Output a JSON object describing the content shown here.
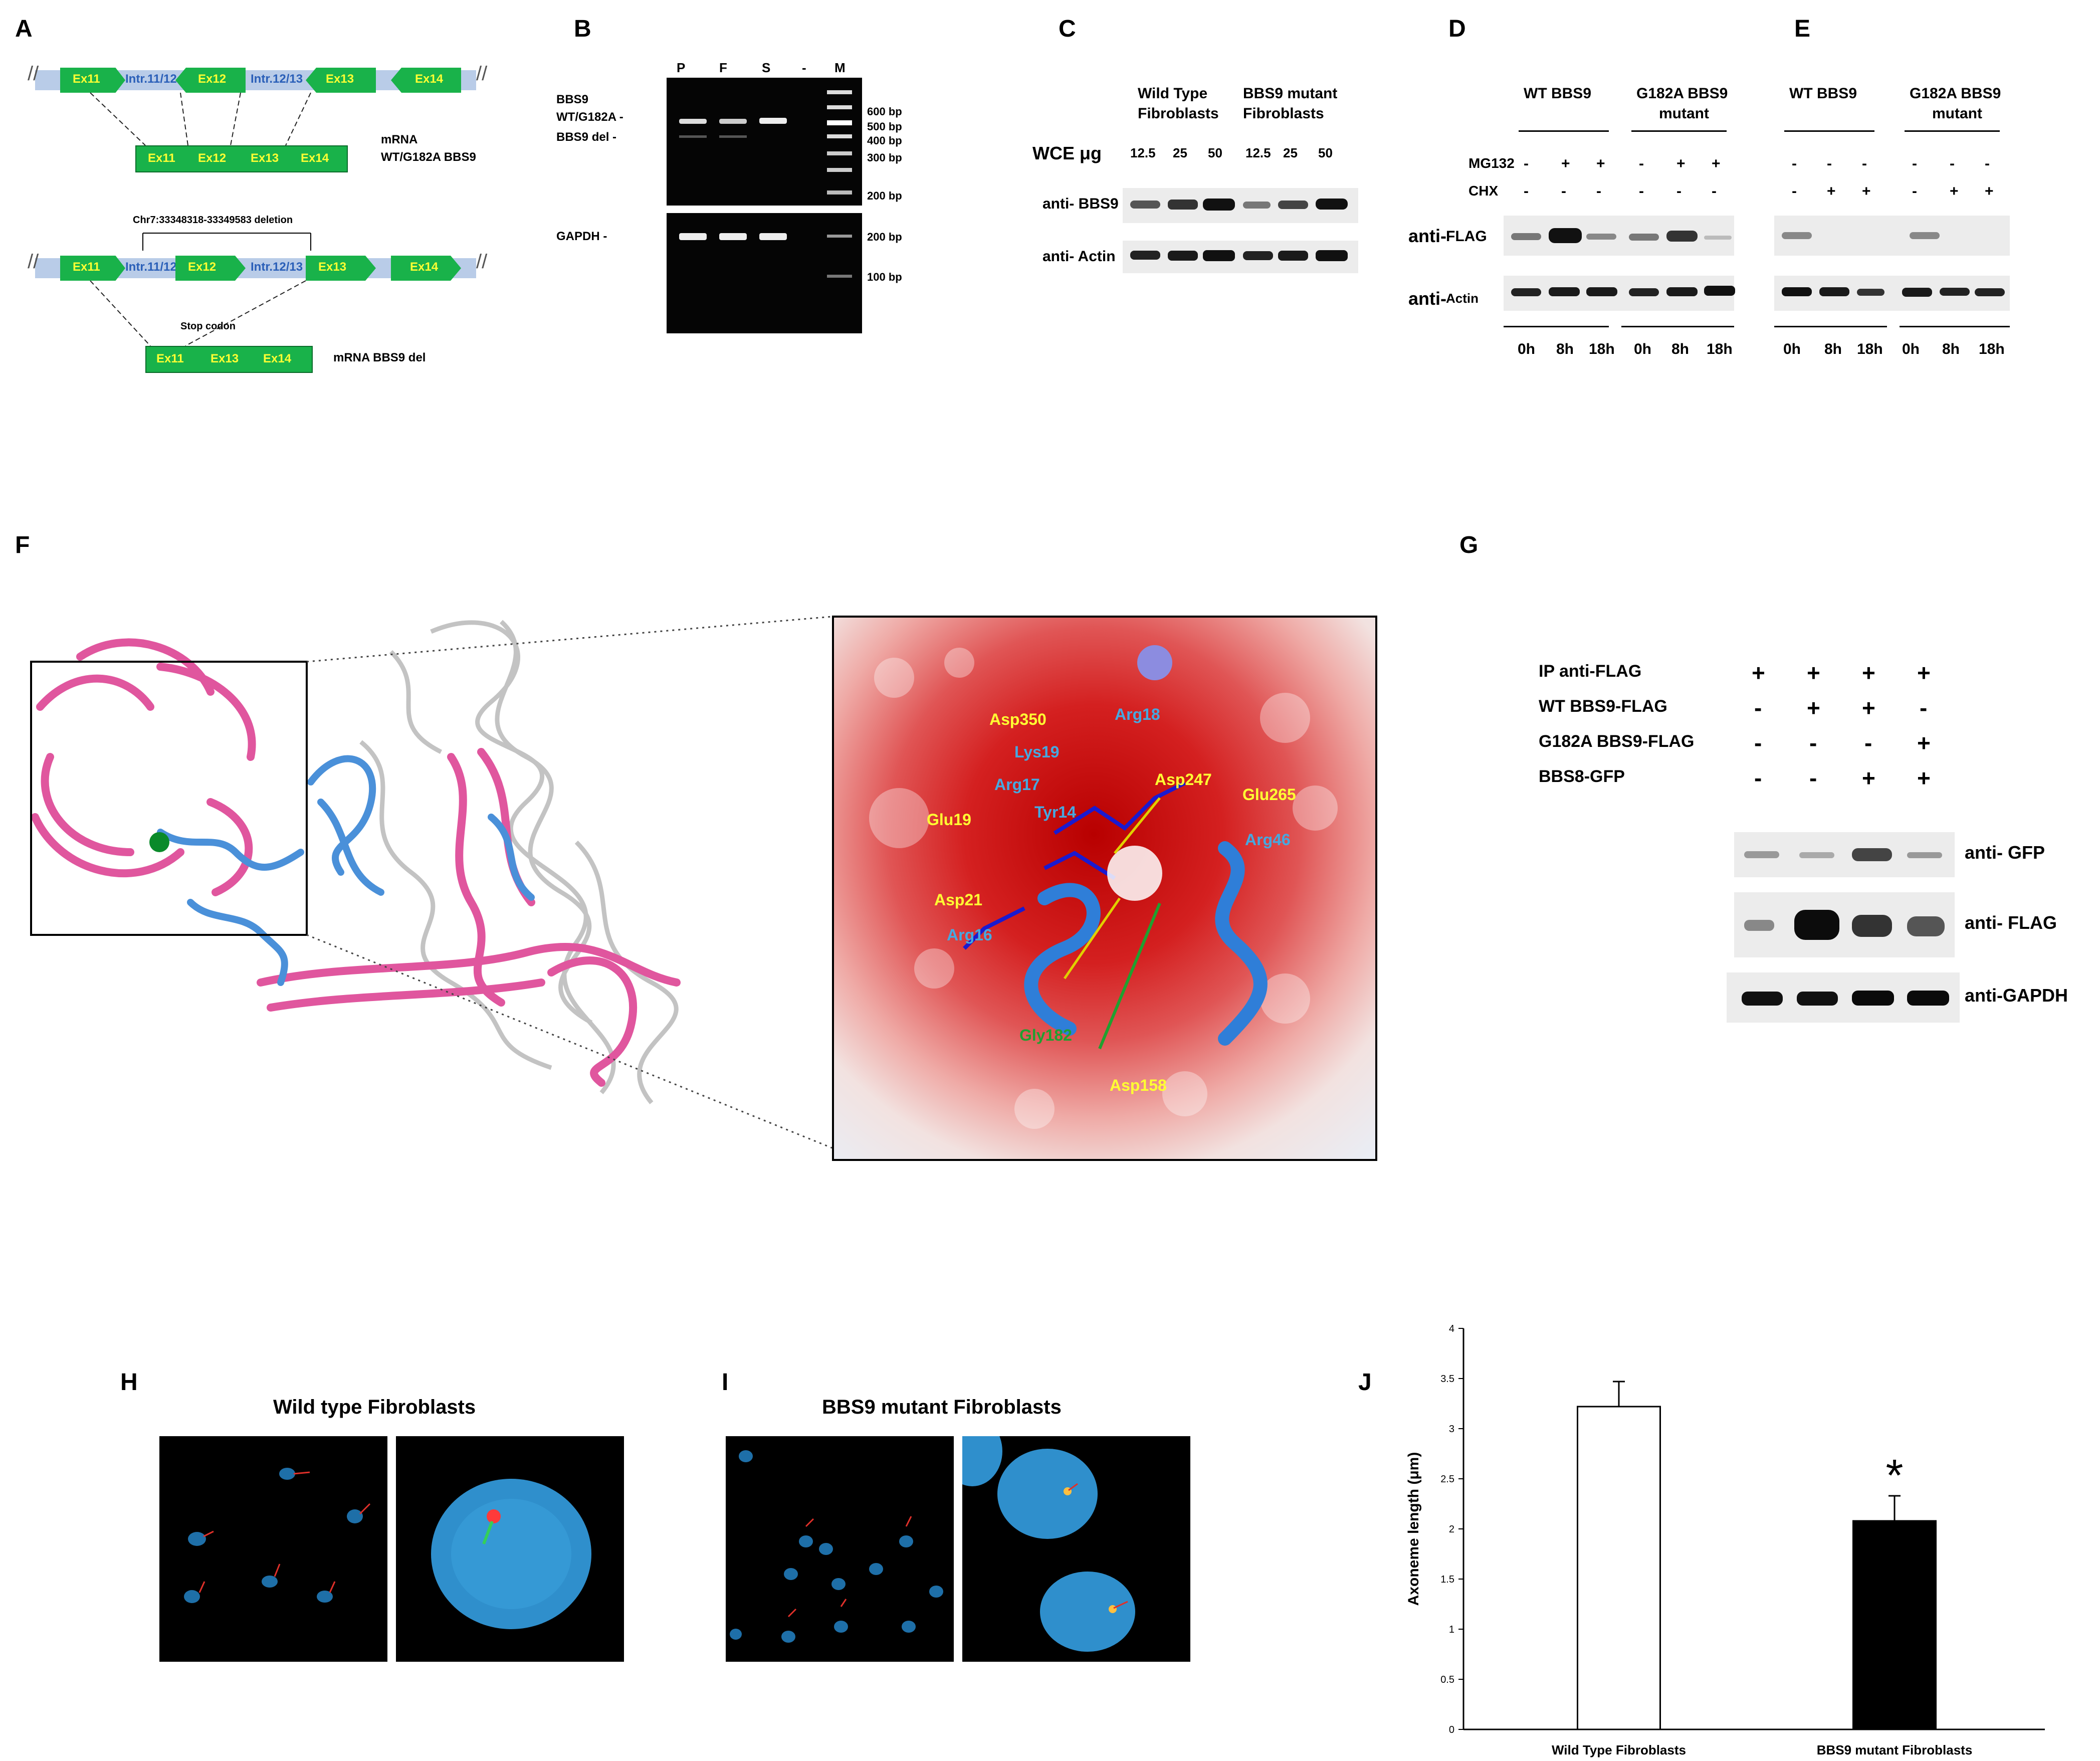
{
  "panels": {
    "A": "A",
    "B": "B",
    "C": "C",
    "D": "D",
    "E": "E",
    "F": "F",
    "G": "G",
    "H": "H",
    "I": "I",
    "J": "J"
  },
  "panelA": {
    "top_exons": [
      "Ex11",
      "Intr.11/12",
      "Ex12",
      "Intr.12/13",
      "Ex13",
      "Ex14"
    ],
    "mrna_wt": [
      "Ex11",
      "Ex12",
      "Ex13",
      "Ex14"
    ],
    "mrna_wt_label_1": "mRNA",
    "mrna_wt_label_2": "WT/G182A BBS9",
    "deletion": "Chr7:33348318-33349583 deletion",
    "stop": "Stop codon",
    "mrna_del": [
      "Ex11",
      "Ex13",
      "Ex14"
    ],
    "mrna_del_label": "mRNA BBS9 del"
  },
  "panelB": {
    "lanes": [
      "P",
      "F",
      "S",
      "-",
      "M"
    ],
    "band_wt_1": "BBS9",
    "band_wt_2": "WT/G182A -",
    "band_del": "BBS9 del -",
    "gapdh": "GAPDH -",
    "ladder": [
      "600 bp",
      "500 bp",
      "400 bp",
      "300 bp",
      "200 bp"
    ],
    "ladder2": [
      "200 bp",
      "100 bp"
    ]
  },
  "panelC": {
    "group1": [
      "Wild Type",
      "Fibroblasts"
    ],
    "group2": [
      "BBS9 mutant",
      "Fibroblasts"
    ],
    "wce": "WCE μg",
    "amounts": [
      "12.5",
      "25",
      "50",
      "12.5",
      "25",
      "50"
    ],
    "row1": "anti- BBS9",
    "row2": "anti- Actin"
  },
  "panelD": {
    "group1": "WT BBS9",
    "group2": [
      "G182A BBS9",
      "mutant"
    ],
    "mg132": "MG132",
    "chx": "CHX",
    "mg_signs": [
      "-",
      "+",
      "+",
      "-",
      "+",
      "+"
    ],
    "chx_signs": [
      "-",
      "-",
      "-",
      "-",
      "-",
      "-"
    ],
    "row1": "anti-",
    "row1b": "FLAG",
    "row2": "anti-",
    "row2b": "Actin",
    "times": [
      "0h",
      "8h",
      "18h",
      "0h",
      "8h",
      "18h"
    ]
  },
  "panelE": {
    "group1": "WT BBS9",
    "group2": [
      "G182A BBS9",
      "mutant"
    ],
    "mg_signs": [
      "-",
      "-",
      "-",
      "-",
      "-",
      "-"
    ],
    "chx_signs": [
      "-",
      "+",
      "+",
      "-",
      "+",
      "+"
    ],
    "times": [
      "0h",
      "8h",
      "18h",
      "0h",
      "8h",
      "18h"
    ]
  },
  "panelF": {
    "residues_yellow": [
      "Asp350",
      "Asp247",
      "Glu265",
      "Glu19",
      "Asp21",
      "Asp158"
    ],
    "residues_cyan": [
      "Arg18",
      "Lys19",
      "Arg17",
      "Tyr14",
      "Arg46",
      "Arg16"
    ],
    "residue_green": "Gly182"
  },
  "panelG": {
    "rows": [
      "IP anti-FLAG",
      "WT BBS9-FLAG",
      "G182A BBS9-FLAG",
      "BBS8-GFP"
    ],
    "signs": [
      [
        "+",
        "+",
        "+",
        "+"
      ],
      [
        "-",
        "+",
        "+",
        "-"
      ],
      [
        "-",
        "-",
        "-",
        "+"
      ],
      [
        "-",
        "-",
        "+",
        "+"
      ]
    ],
    "blots": [
      "anti- GFP",
      "anti- FLAG",
      "anti-GAPDH"
    ]
  },
  "panelH": {
    "title": "Wild type Fibroblasts"
  },
  "panelI": {
    "title": "BBS9 mutant Fibroblasts"
  },
  "chart_data": {
    "type": "bar",
    "categories": [
      "Wild Type Fibroblasts",
      "BBS9 mutant Fibroblasts"
    ],
    "values": [
      3.22,
      2.08
    ],
    "errors": [
      0.25,
      0.25
    ],
    "ylabel": "Axoneme length (μm)",
    "ylim": [
      0,
      4
    ],
    "yticks": [
      "0",
      "0.5",
      "1",
      "1.5",
      "2",
      "2.5",
      "3",
      "3.5",
      "4"
    ],
    "annotation": "*",
    "colors": [
      "#ffffff",
      "#000000"
    ]
  }
}
